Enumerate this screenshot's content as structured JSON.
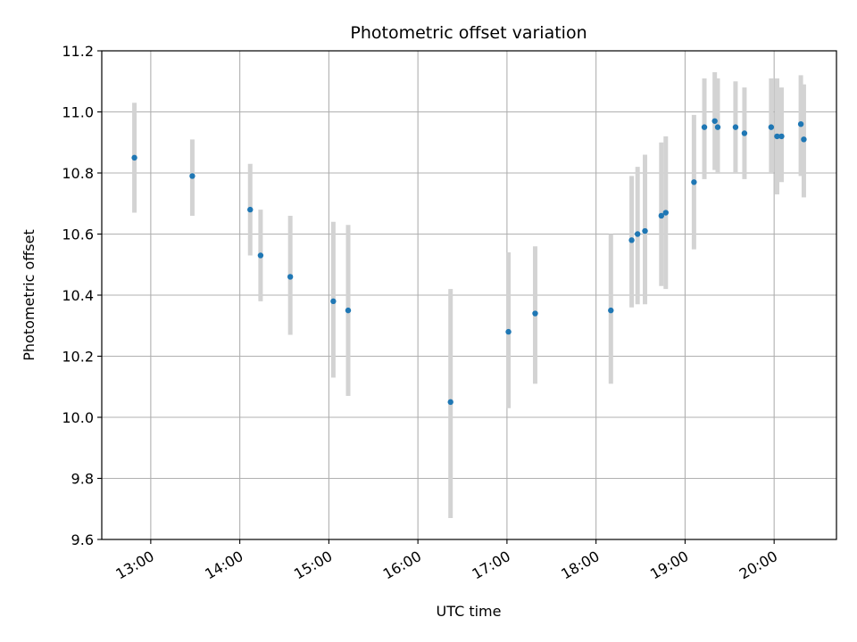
{
  "chart_data": {
    "type": "scatter",
    "title": "Photometric offset variation",
    "xlabel": "UTC time",
    "ylabel": "Photometric offset",
    "x_axis_type": "time",
    "xlim": [
      "12:27",
      "20:42"
    ],
    "ylim": [
      9.6,
      11.2
    ],
    "x_ticks": [
      "13:00",
      "14:00",
      "15:00",
      "16:00",
      "17:00",
      "18:00",
      "19:00",
      "20:00"
    ],
    "y_ticks": [
      "9.6",
      "9.8",
      "10.0",
      "10.2",
      "10.4",
      "10.6",
      "10.8",
      "11.0",
      "11.2"
    ],
    "grid": true,
    "legend": "none",
    "colors": {
      "points": "#1f77b4",
      "error_bars": "#d3d3d3",
      "grid": "#b0b0b0"
    },
    "points": [
      {
        "time": "12:49",
        "y": 10.85,
        "ylow": 10.67,
        "yhigh": 11.03
      },
      {
        "time": "13:28",
        "y": 10.79,
        "ylow": 10.66,
        "yhigh": 10.91
      },
      {
        "time": "14:07",
        "y": 10.68,
        "ylow": 10.53,
        "yhigh": 10.83
      },
      {
        "time": "14:14",
        "y": 10.53,
        "ylow": 10.38,
        "yhigh": 10.68
      },
      {
        "time": "14:34",
        "y": 10.46,
        "ylow": 10.27,
        "yhigh": 10.66
      },
      {
        "time": "15:03",
        "y": 10.38,
        "ylow": 10.13,
        "yhigh": 10.64
      },
      {
        "time": "15:13",
        "y": 10.35,
        "ylow": 10.07,
        "yhigh": 10.63
      },
      {
        "time": "16:22",
        "y": 10.05,
        "ylow": 9.67,
        "yhigh": 10.42
      },
      {
        "time": "17:01",
        "y": 10.28,
        "ylow": 10.03,
        "yhigh": 10.54
      },
      {
        "time": "17:19",
        "y": 10.34,
        "ylow": 10.11,
        "yhigh": 10.56
      },
      {
        "time": "18:10",
        "y": 10.35,
        "ylow": 10.11,
        "yhigh": 10.6
      },
      {
        "time": "18:24",
        "y": 10.58,
        "ylow": 10.36,
        "yhigh": 10.79
      },
      {
        "time": "18:28",
        "y": 10.6,
        "ylow": 10.37,
        "yhigh": 10.82
      },
      {
        "time": "18:33",
        "y": 10.61,
        "ylow": 10.37,
        "yhigh": 10.86
      },
      {
        "time": "18:44",
        "y": 10.66,
        "ylow": 10.43,
        "yhigh": 10.9
      },
      {
        "time": "18:47",
        "y": 10.67,
        "ylow": 10.42,
        "yhigh": 10.92
      },
      {
        "time": "19:06",
        "y": 10.77,
        "ylow": 10.55,
        "yhigh": 10.99
      },
      {
        "time": "19:13",
        "y": 10.95,
        "ylow": 10.78,
        "yhigh": 11.11
      },
      {
        "time": "19:20",
        "y": 10.97,
        "ylow": 10.81,
        "yhigh": 11.13
      },
      {
        "time": "19:22",
        "y": 10.95,
        "ylow": 10.8,
        "yhigh": 11.11
      },
      {
        "time": "19:34",
        "y": 10.95,
        "ylow": 10.8,
        "yhigh": 11.1
      },
      {
        "time": "19:40",
        "y": 10.93,
        "ylow": 10.78,
        "yhigh": 11.08
      },
      {
        "time": "19:58",
        "y": 10.95,
        "ylow": 10.8,
        "yhigh": 11.11
      },
      {
        "time": "20:02",
        "y": 10.92,
        "ylow": 10.73,
        "yhigh": 11.11
      },
      {
        "time": "20:05",
        "y": 10.92,
        "ylow": 10.77,
        "yhigh": 11.08
      },
      {
        "time": "20:18",
        "y": 10.96,
        "ylow": 10.79,
        "yhigh": 11.12
      },
      {
        "time": "20:20",
        "y": 10.91,
        "ylow": 10.72,
        "yhigh": 11.09
      }
    ]
  }
}
